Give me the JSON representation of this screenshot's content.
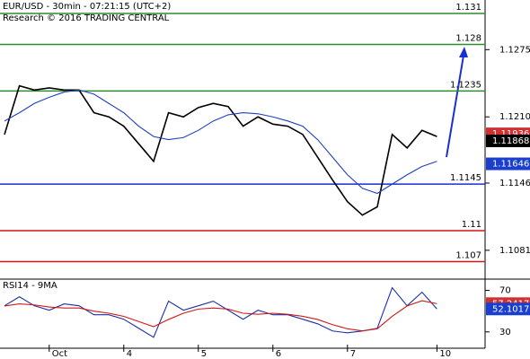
{
  "chart_data": [
    {
      "type": "line",
      "title": "EUR/USD - 30min - 07:21:15 (UTC+2)",
      "subtitle": "Research © 2016 TRADING CENTRAL",
      "ylim": [
        1.1054,
        1.1323
      ],
      "yticks": [
        1.1275,
        {
          "value": 1.121,
          "label": "1.1210"
        },
        1.1146,
        1.1081
      ],
      "series": [
        {
          "color": "#000000",
          "values": [
            1.1193,
            1.124,
            1.1236,
            1.1238,
            1.1236,
            1.1236,
            1.1214,
            1.121,
            1.1201,
            1.1184,
            1.1167,
            1.1214,
            1.121,
            1.1219,
            1.1223,
            1.122,
            1.1201,
            1.121,
            1.1203,
            1.1201,
            1.1193,
            1.1171,
            1.1149,
            1.1128,
            1.1115,
            1.1123,
            1.1193,
            1.118,
            1.1197,
            1.1191
          ]
        },
        {
          "color": "#1f3fbf",
          "values": [
            1.1206,
            1.1214,
            1.1223,
            1.1229,
            1.1234,
            1.1236,
            1.1232,
            1.1223,
            1.1214,
            1.1201,
            1.1191,
            1.1188,
            1.119,
            1.1197,
            1.1206,
            1.1212,
            1.1214,
            1.1213,
            1.121,
            1.1206,
            1.1201,
            1.1188,
            1.1171,
            1.1154,
            1.1141,
            1.1136,
            1.1145,
            1.1154,
            1.1162,
            1.1167
          ]
        }
      ],
      "levels": [
        {
          "value": 1.131,
          "color": "#2e8b2e"
        },
        {
          "value": 1.128,
          "color": "#2e8b2e"
        },
        {
          "value": 1.1235,
          "color": "#2e8b2e"
        },
        {
          "value": 1.1145,
          "color": "#1a2fd0"
        },
        {
          "value": 1.11,
          "color": "#d01818"
        },
        {
          "value": 1.107,
          "color": "#d01818"
        }
      ],
      "price_tags": [
        {
          "value": 1.11936,
          "color": "#d03030"
        },
        {
          "value": 1.11868,
          "color": "#000000"
        },
        {
          "value": 1.11646,
          "color": "#1a3fcf"
        }
      ]
    },
    {
      "type": "line",
      "title": "RSI14 - 9MA",
      "ylim": [
        16,
        80
      ],
      "yticks": [
        70,
        30
      ],
      "categories": [
        null,
        null,
        null,
        "Oct",
        null,
        null,
        null,
        null,
        "4",
        null,
        null,
        null,
        null,
        "5",
        null,
        null,
        null,
        null,
        "6",
        null,
        null,
        null,
        null,
        "7",
        null,
        null,
        null,
        null,
        null,
        "10"
      ],
      "series": [
        {
          "color": "#1a2fa0",
          "values": [
            55.2,
            63.9,
            55.2,
            50.9,
            57.0,
            55.2,
            46.5,
            46.5,
            42.2,
            33.5,
            24.8,
            59.6,
            50.9,
            55.2,
            59.6,
            50.9,
            42.2,
            50.9,
            46.5,
            46.5,
            42.2,
            37.8,
            30.9,
            29.1,
            30.9,
            33.5,
            72.6,
            55.2,
            68.3,
            52.1
          ]
        },
        {
          "color": "#d01818",
          "values": [
            55,
            57,
            56,
            54,
            53,
            53,
            50,
            48,
            45,
            40,
            35,
            42,
            48,
            52,
            53,
            52,
            48,
            47,
            48,
            47,
            45,
            42,
            37,
            33,
            31,
            33,
            45,
            55,
            60,
            57.2
          ]
        }
      ],
      "price_tags": [
        {
          "value": 57.2417,
          "color": "#d03030"
        },
        {
          "value": 52.1017,
          "color": "#1a3fcf"
        }
      ]
    }
  ]
}
